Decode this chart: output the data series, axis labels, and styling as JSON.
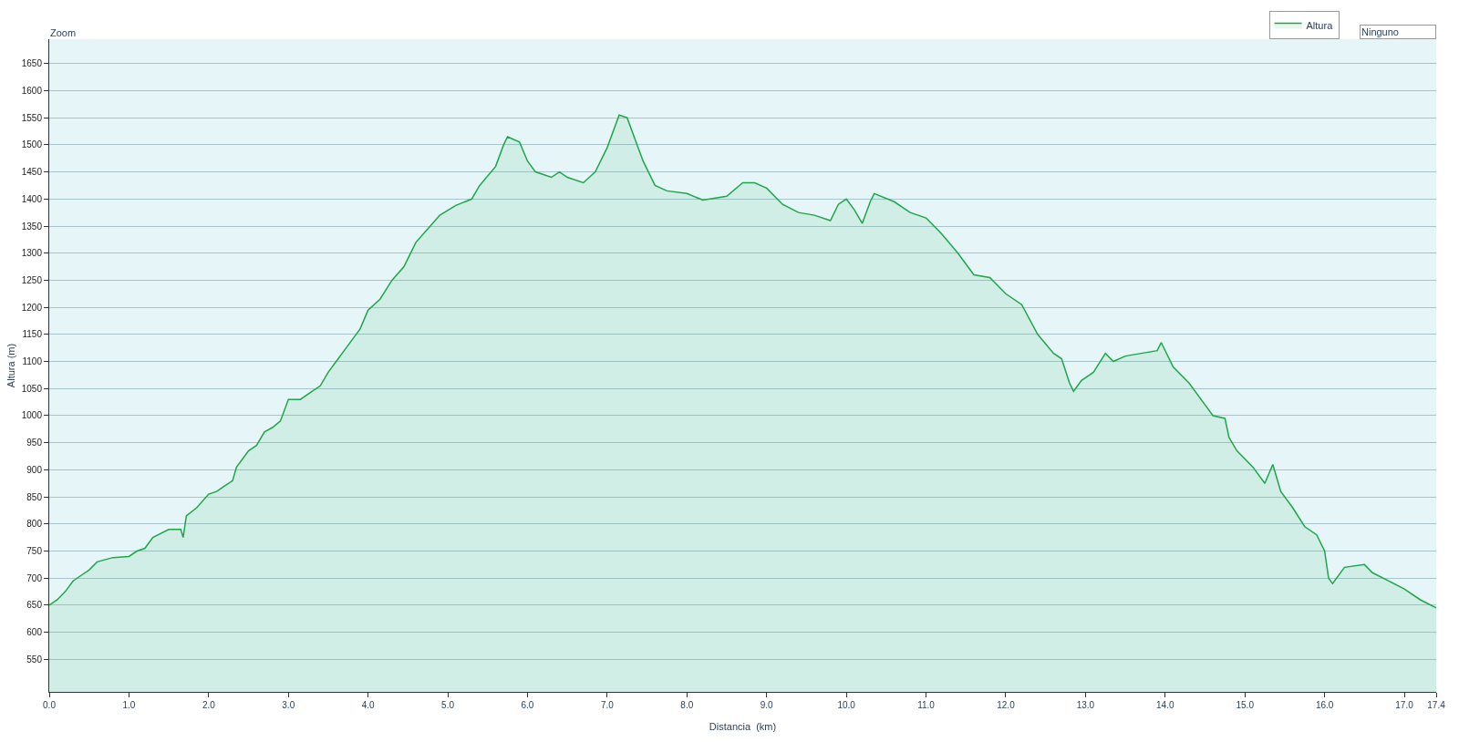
{
  "chart_data": {
    "type": "area",
    "xlabel": "Distancia  (km)",
    "ylabel": "Altura (m)",
    "legend": "top right",
    "grid": "y",
    "annotations": [
      "Zoom",
      "Ninguno"
    ],
    "xlim": [
      0,
      17.4
    ],
    "xticks": [
      {
        "value": 0,
        "label": "0.0"
      },
      {
        "value": 1,
        "label": "1.0"
      },
      {
        "value": 2,
        "label": "2.0"
      },
      {
        "value": 3,
        "label": "3.0"
      },
      {
        "value": 4,
        "label": "4.0"
      },
      {
        "value": 5,
        "label": "5.0"
      },
      {
        "value": 6,
        "label": "6.0"
      },
      {
        "value": 7,
        "label": "7.0"
      },
      {
        "value": 8,
        "label": "8.0"
      },
      {
        "value": 9,
        "label": "9.0"
      },
      {
        "value": 10,
        "label": "10.0"
      },
      {
        "value": 11,
        "label": "11.0"
      },
      {
        "value": 12,
        "label": "12.0"
      },
      {
        "value": 13,
        "label": "13.0"
      },
      {
        "value": 14,
        "label": "14.0"
      },
      {
        "value": 15,
        "label": "15.0"
      },
      {
        "value": 16,
        "label": "16.0"
      },
      {
        "value": 17,
        "label": "17.0"
      },
      {
        "value": 17.4,
        "label": "17.4"
      }
    ],
    "ylim": [
      490,
      1695
    ],
    "yticks": [
      550,
      600,
      650,
      700,
      750,
      800,
      850,
      900,
      950,
      1000,
      1050,
      1100,
      1150,
      1200,
      1250,
      1300,
      1350,
      1400,
      1450,
      1500,
      1550,
      1600,
      1650
    ],
    "x": [
      0,
      0.1,
      0.2,
      0.3,
      0.4,
      0.5,
      0.6,
      0.8,
      1.0,
      1.1,
      1.2,
      1.3,
      1.5,
      1.65,
      1.68,
      1.72,
      1.85,
      2.0,
      2.1,
      2.2,
      2.3,
      2.35,
      2.5,
      2.6,
      2.7,
      2.8,
      2.9,
      3.0,
      3.15,
      3.3,
      3.4,
      3.5,
      3.6,
      3.7,
      3.9,
      4.0,
      4.15,
      4.3,
      4.45,
      4.5,
      4.6,
      4.75,
      4.9,
      5.1,
      5.3,
      5.4,
      5.6,
      5.7,
      5.75,
      5.9,
      6.0,
      6.1,
      6.3,
      6.4,
      6.5,
      6.7,
      6.85,
      7.0,
      7.15,
      7.25,
      7.35,
      7.45,
      7.6,
      7.75,
      8.0,
      8.2,
      8.5,
      8.7,
      8.85,
      9.0,
      9.2,
      9.4,
      9.6,
      9.8,
      9.9,
      10.0,
      10.1,
      10.2,
      10.3,
      10.35,
      10.6,
      10.8,
      11.0,
      11.2,
      11.4,
      11.6,
      11.8,
      12.0,
      12.2,
      12.4,
      12.6,
      12.7,
      12.8,
      12.85,
      12.95,
      13.1,
      13.25,
      13.35,
      13.5,
      13.7,
      13.9,
      13.95,
      14.1,
      14.3,
      14.5,
      14.6,
      14.75,
      14.8,
      14.9,
      15.1,
      15.25,
      15.35,
      15.45,
      15.6,
      15.75,
      15.9,
      16.0,
      16.05,
      16.1,
      16.25,
      16.5,
      16.6,
      16.8,
      17.0,
      17.2,
      17.4
    ],
    "series": [
      {
        "name": "Altura",
        "color": "#1ea64a",
        "values": [
          650,
          660,
          675,
          695,
          705,
          715,
          730,
          738,
          740,
          750,
          755,
          775,
          790,
          790,
          775,
          815,
          830,
          855,
          860,
          870,
          880,
          905,
          935,
          945,
          970,
          978,
          990,
          1030,
          1030,
          1045,
          1055,
          1080,
          1100,
          1120,
          1160,
          1195,
          1215,
          1250,
          1275,
          1290,
          1320,
          1345,
          1370,
          1388,
          1400,
          1425,
          1460,
          1500,
          1515,
          1505,
          1470,
          1450,
          1440,
          1450,
          1440,
          1430,
          1450,
          1495,
          1555,
          1550,
          1510,
          1470,
          1425,
          1415,
          1410,
          1398,
          1405,
          1430,
          1430,
          1420,
          1390,
          1375,
          1370,
          1360,
          1390,
          1400,
          1380,
          1355,
          1395,
          1410,
          1395,
          1375,
          1365,
          1335,
          1300,
          1260,
          1255,
          1225,
          1205,
          1150,
          1115,
          1105,
          1060,
          1045,
          1065,
          1080,
          1115,
          1100,
          1110,
          1115,
          1120,
          1135,
          1090,
          1060,
          1020,
          1000,
          995,
          960,
          935,
          905,
          875,
          910,
          860,
          830,
          795,
          780,
          750,
          700,
          690,
          720,
          725,
          710,
          695,
          680,
          660,
          645
        ]
      }
    ]
  }
}
